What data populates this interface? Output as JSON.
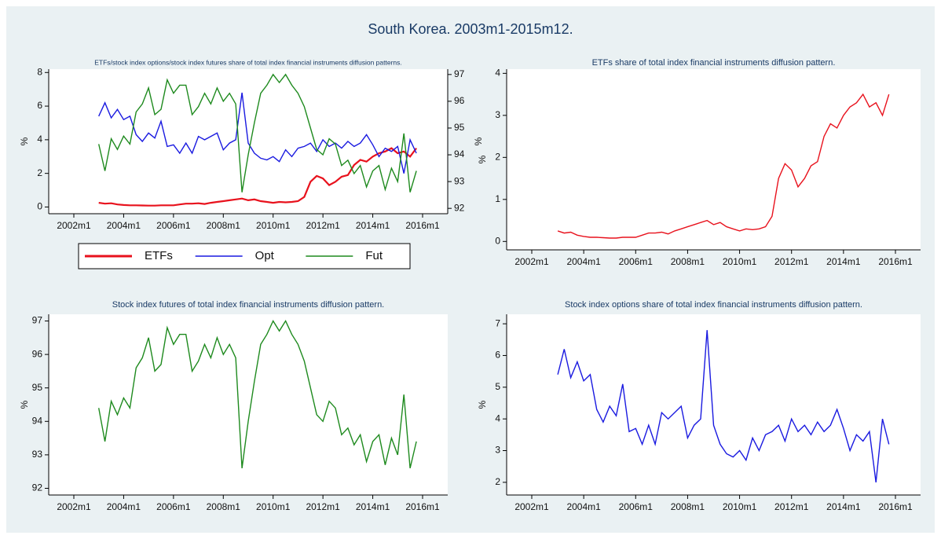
{
  "title": "South Korea. 2003m1-2015m12.",
  "chart_data": [
    {
      "type": "line",
      "title": "ETFs/stock index options/stock index futures share of total index financial instruments diffusion patterns.",
      "ylabel": "%",
      "y2label": "%",
      "x": [
        "2003m1",
        "2003m4",
        "2003m7",
        "2003m10",
        "2004m1",
        "2004m4",
        "2004m7",
        "2004m10",
        "2005m1",
        "2005m4",
        "2005m7",
        "2005m10",
        "2006m1",
        "2006m4",
        "2006m7",
        "2006m10",
        "2007m1",
        "2007m4",
        "2007m7",
        "2007m10",
        "2008m1",
        "2008m4",
        "2008m7",
        "2008m10",
        "2009m1",
        "2009m4",
        "2009m7",
        "2009m10",
        "2010m1",
        "2010m4",
        "2010m7",
        "2010m10",
        "2011m1",
        "2011m4",
        "2011m7",
        "2011m10",
        "2012m1",
        "2012m4",
        "2012m7",
        "2012m10",
        "2013m1",
        "2013m4",
        "2013m7",
        "2013m10",
        "2014m1",
        "2014m4",
        "2014m7",
        "2014m10",
        "2015m1",
        "2015m4",
        "2015m7",
        "2015m10"
      ],
      "series": [
        {
          "name": "ETFs",
          "color": "#e8121d",
          "values": [
            0.25,
            0.2,
            0.22,
            0.15,
            0.12,
            0.1,
            0.1,
            0.09,
            0.08,
            0.08,
            0.1,
            0.1,
            0.1,
            0.15,
            0.2,
            0.2,
            0.22,
            0.18,
            0.25,
            0.3,
            0.35,
            0.4,
            0.45,
            0.5,
            0.4,
            0.45,
            0.35,
            0.3,
            0.25,
            0.3,
            0.28,
            0.3,
            0.35,
            0.6,
            1.5,
            1.85,
            1.7,
            1.3,
            1.5,
            1.8,
            1.9,
            2.5,
            2.8,
            2.7,
            3.0,
            3.2,
            3.3,
            3.5,
            3.2,
            3.3,
            3.0,
            3.5
          ]
        },
        {
          "name": "Opt",
          "color": "#1a1ae0",
          "values": [
            5.4,
            6.2,
            5.3,
            5.8,
            5.2,
            5.4,
            4.3,
            3.9,
            4.4,
            4.1,
            5.1,
            3.6,
            3.7,
            3.2,
            3.8,
            3.2,
            4.2,
            4.0,
            4.2,
            4.4,
            3.4,
            3.8,
            4.0,
            6.8,
            3.8,
            3.2,
            2.9,
            2.8,
            3.0,
            2.7,
            3.4,
            3.0,
            3.5,
            3.6,
            3.8,
            3.3,
            4.0,
            3.6,
            3.8,
            3.5,
            3.9,
            3.6,
            3.8,
            4.3,
            3.7,
            3.0,
            3.5,
            3.3,
            3.6,
            2.0,
            4.0,
            3.2
          ]
        },
        {
          "name": "Fut",
          "color": "#1e8a1e",
          "axis": "y2",
          "values": [
            94.4,
            93.4,
            94.6,
            94.2,
            94.7,
            94.4,
            95.6,
            95.9,
            96.5,
            95.5,
            95.7,
            96.8,
            96.3,
            96.6,
            96.6,
            95.5,
            95.8,
            96.3,
            95.9,
            96.5,
            96.0,
            96.3,
            95.9,
            92.6,
            94.0,
            95.2,
            96.3,
            96.6,
            97.0,
            96.7,
            97.0,
            96.6,
            96.3,
            95.8,
            95.0,
            94.2,
            94.0,
            94.6,
            94.4,
            93.6,
            93.8,
            93.3,
            93.6,
            92.8,
            93.4,
            93.6,
            92.7,
            93.5,
            93.0,
            94.8,
            92.6,
            93.4
          ]
        }
      ],
      "xlim": [
        "2002m1",
        "2016m1"
      ],
      "xticks": [
        "2002m1",
        "2004m1",
        "2006m1",
        "2008m1",
        "2010m1",
        "2012m1",
        "2014m1",
        "2016m1"
      ],
      "ylim": [
        -0.4,
        8.2
      ],
      "yticks": [
        0,
        2,
        4,
        6,
        8
      ],
      "y2lim": [
        91.8,
        97.2
      ],
      "y2ticks": [
        92,
        93,
        94,
        95,
        96,
        97
      ],
      "legend": "below"
    },
    {
      "type": "line",
      "title": "ETFs share of total index financial instruments diffusion pattern.",
      "ylabel": "%",
      "x": [
        "2003m1",
        "2003m4",
        "2003m7",
        "2003m10",
        "2004m1",
        "2004m4",
        "2004m7",
        "2004m10",
        "2005m1",
        "2005m4",
        "2005m7",
        "2005m10",
        "2006m1",
        "2006m4",
        "2006m7",
        "2006m10",
        "2007m1",
        "2007m4",
        "2007m7",
        "2007m10",
        "2008m1",
        "2008m4",
        "2008m7",
        "2008m10",
        "2009m1",
        "2009m4",
        "2009m7",
        "2009m10",
        "2010m1",
        "2010m4",
        "2010m7",
        "2010m10",
        "2011m1",
        "2011m4",
        "2011m7",
        "2011m10",
        "2012m1",
        "2012m4",
        "2012m7",
        "2012m10",
        "2013m1",
        "2013m4",
        "2013m7",
        "2013m10",
        "2014m1",
        "2014m4",
        "2014m7",
        "2014m10",
        "2015m1",
        "2015m4",
        "2015m7",
        "2015m10"
      ],
      "series": [
        {
          "color": "#e8121d",
          "values": [
            0.25,
            0.2,
            0.22,
            0.15,
            0.12,
            0.1,
            0.1,
            0.09,
            0.08,
            0.08,
            0.1,
            0.1,
            0.1,
            0.15,
            0.2,
            0.2,
            0.22,
            0.18,
            0.25,
            0.3,
            0.35,
            0.4,
            0.45,
            0.5,
            0.4,
            0.45,
            0.35,
            0.3,
            0.25,
            0.3,
            0.28,
            0.3,
            0.35,
            0.6,
            1.5,
            1.85,
            1.7,
            1.3,
            1.5,
            1.8,
            1.9,
            2.5,
            2.8,
            2.7,
            3.0,
            3.2,
            3.3,
            3.5,
            3.2,
            3.3,
            3.0,
            3.5
          ]
        }
      ],
      "xlim": [
        "2002m1",
        "2016m1"
      ],
      "xticks": [
        "2002m1",
        "2004m1",
        "2006m1",
        "2008m1",
        "2010m1",
        "2012m1",
        "2014m1",
        "2016m1"
      ],
      "ylim": [
        -0.2,
        4.1
      ],
      "yticks": [
        0,
        1,
        2,
        3,
        4
      ]
    },
    {
      "type": "line",
      "title": "Stock index futures of total index financial instruments diffusion pattern.",
      "ylabel": "%",
      "x": [
        "2003m1",
        "2003m4",
        "2003m7",
        "2003m10",
        "2004m1",
        "2004m4",
        "2004m7",
        "2004m10",
        "2005m1",
        "2005m4",
        "2005m7",
        "2005m10",
        "2006m1",
        "2006m4",
        "2006m7",
        "2006m10",
        "2007m1",
        "2007m4",
        "2007m7",
        "2007m10",
        "2008m1",
        "2008m4",
        "2008m7",
        "2008m10",
        "2009m1",
        "2009m4",
        "2009m7",
        "2009m10",
        "2010m1",
        "2010m4",
        "2010m7",
        "2010m10",
        "2011m1",
        "2011m4",
        "2011m7",
        "2011m10",
        "2012m1",
        "2012m4",
        "2012m7",
        "2012m10",
        "2013m1",
        "2013m4",
        "2013m7",
        "2013m10",
        "2014m1",
        "2014m4",
        "2014m7",
        "2014m10",
        "2015m1",
        "2015m4",
        "2015m7",
        "2015m10"
      ],
      "series": [
        {
          "color": "#1e8a1e",
          "values": [
            94.4,
            93.4,
            94.6,
            94.2,
            94.7,
            94.4,
            95.6,
            95.9,
            96.5,
            95.5,
            95.7,
            96.8,
            96.3,
            96.6,
            96.6,
            95.5,
            95.8,
            96.3,
            95.9,
            96.5,
            96.0,
            96.3,
            95.9,
            92.6,
            94.0,
            95.2,
            96.3,
            96.6,
            97.0,
            96.7,
            97.0,
            96.6,
            96.3,
            95.8,
            95.0,
            94.2,
            94.0,
            94.6,
            94.4,
            93.6,
            93.8,
            93.3,
            93.6,
            92.8,
            93.4,
            93.6,
            92.7,
            93.5,
            93.0,
            94.8,
            92.6,
            93.4
          ]
        }
      ],
      "xlim": [
        "2002m1",
        "2016m1"
      ],
      "xticks": [
        "2002m1",
        "2004m1",
        "2006m1",
        "2008m1",
        "2010m1",
        "2012m1",
        "2014m1",
        "2016m1"
      ],
      "ylim": [
        91.8,
        97.2
      ],
      "yticks": [
        92,
        93,
        94,
        95,
        96,
        97
      ]
    },
    {
      "type": "line",
      "title": "Stock index options share of total index financial instruments diffusion pattern.",
      "ylabel": "%",
      "x": [
        "2003m1",
        "2003m4",
        "2003m7",
        "2003m10",
        "2004m1",
        "2004m4",
        "2004m7",
        "2004m10",
        "2005m1",
        "2005m4",
        "2005m7",
        "2005m10",
        "2006m1",
        "2006m4",
        "2006m7",
        "2006m10",
        "2007m1",
        "2007m4",
        "2007m7",
        "2007m10",
        "2008m1",
        "2008m4",
        "2008m7",
        "2008m10",
        "2009m1",
        "2009m4",
        "2009m7",
        "2009m10",
        "2010m1",
        "2010m4",
        "2010m7",
        "2010m10",
        "2011m1",
        "2011m4",
        "2011m7",
        "2011m10",
        "2012m1",
        "2012m4",
        "2012m7",
        "2012m10",
        "2013m1",
        "2013m4",
        "2013m7",
        "2013m10",
        "2014m1",
        "2014m4",
        "2014m7",
        "2014m10",
        "2015m1",
        "2015m4",
        "2015m7",
        "2015m10"
      ],
      "series": [
        {
          "color": "#1a1ae0",
          "values": [
            5.4,
            6.2,
            5.3,
            5.8,
            5.2,
            5.4,
            4.3,
            3.9,
            4.4,
            4.1,
            5.1,
            3.6,
            3.7,
            3.2,
            3.8,
            3.2,
            4.2,
            4.0,
            4.2,
            4.4,
            3.4,
            3.8,
            4.0,
            6.8,
            3.8,
            3.2,
            2.9,
            2.8,
            3.0,
            2.7,
            3.4,
            3.0,
            3.5,
            3.6,
            3.8,
            3.3,
            4.0,
            3.6,
            3.8,
            3.5,
            3.9,
            3.6,
            3.8,
            4.3,
            3.7,
            3.0,
            3.5,
            3.3,
            3.6,
            2.0,
            4.0,
            3.2
          ]
        }
      ],
      "xlim": [
        "2002m1",
        "2016m1"
      ],
      "xticks": [
        "2002m1",
        "2004m1",
        "2006m1",
        "2008m1",
        "2010m1",
        "2012m1",
        "2014m1",
        "2016m1"
      ],
      "ylim": [
        1.6,
        7.3
      ],
      "yticks": [
        2,
        3,
        4,
        5,
        6,
        7
      ]
    }
  ]
}
